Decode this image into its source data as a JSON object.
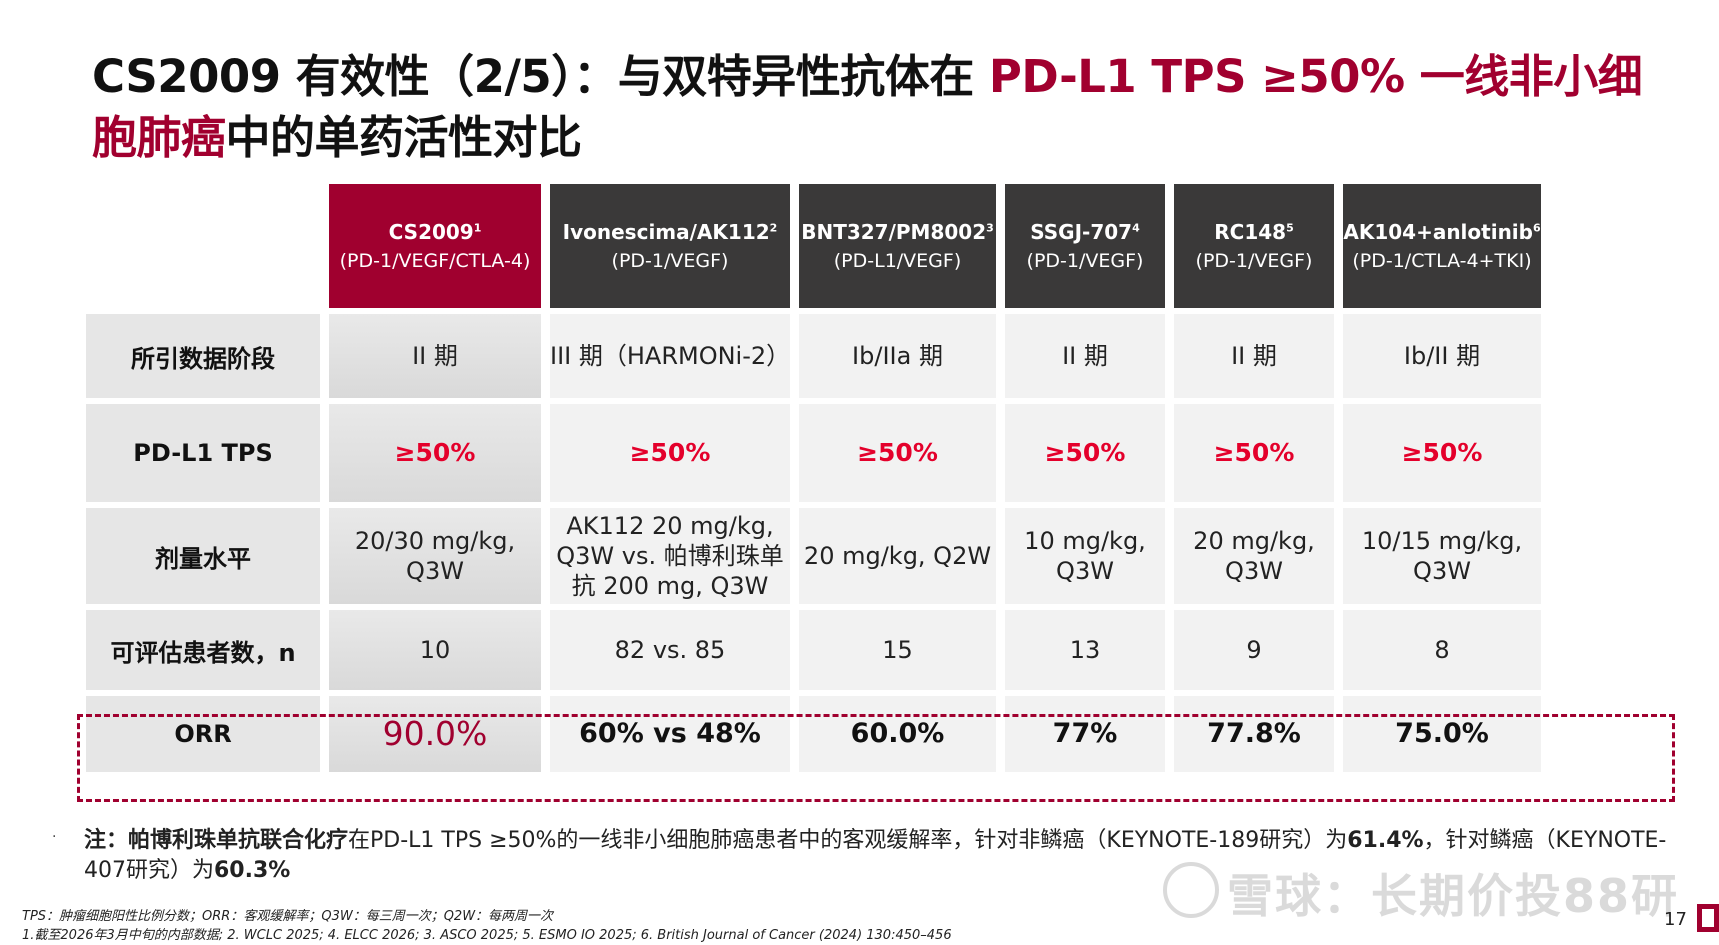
{
  "title": {
    "part1": "CS2009 有效性（2/5）：与双特异性抗体在 ",
    "highlight1": "PD-L1 TPS ≥50% 一线非小细胞肺癌",
    "part2": "中的单药活性对比"
  },
  "table": {
    "columns": [
      {
        "name": "CS2009",
        "sup": "1",
        "target": "(PD-1/VEGF/CTLA-4)"
      },
      {
        "name": "Ivonescima/AK112",
        "sup": "2",
        "target": "(PD-1/VEGF)"
      },
      {
        "name": "BNT327/PM8002",
        "sup": "3",
        "target": "(PD-L1/VEGF)"
      },
      {
        "name": "SSGJ-707",
        "sup": "4",
        "target": "(PD-1/VEGF)"
      },
      {
        "name": "RC148",
        "sup": "5",
        "target": "(PD-1/VEGF)"
      },
      {
        "name": "AK104+anlotinib",
        "sup": "6",
        "target": "(PD-1/CTLA-4+TKI)"
      }
    ],
    "rows": [
      {
        "label": "所引数据阶段",
        "values": [
          "II 期",
          "III 期（HARMONi-2）",
          "Ib/IIa 期",
          "II 期",
          "II 期",
          "Ib/II 期"
        ]
      },
      {
        "label": "PD-L1 TPS",
        "values": [
          "≥50%",
          "≥50%",
          "≥50%",
          "≥50%",
          "≥50%",
          "≥50%"
        ]
      },
      {
        "label": "剂量水平",
        "values": [
          "20/30 mg/kg, Q3W",
          "AK112 20 mg/kg, Q3W vs. 帕博利珠单抗 200 mg, Q3W",
          "20 mg/kg, Q2W",
          "10 mg/kg, Q3W",
          "20 mg/kg, Q3W",
          "10/15 mg/kg, Q3W"
        ]
      },
      {
        "label": "可评估患者数，n",
        "values": [
          "10",
          "82 vs. 85",
          "15",
          "13",
          "9",
          "8"
        ]
      },
      {
        "label": "ORR",
        "values": [
          "90.0%",
          "60% vs 48%",
          "60.0%",
          "77%",
          "77.8%",
          "75.0%"
        ]
      }
    ]
  },
  "note": {
    "prefix": "注：帕博利珠单抗联合化疗",
    "text1": "在PD-L1 TPS ≥50%的一线非小细胞肺癌患者中的客观缓解率，针对非鳞癌（KEYNOTE-189研究）为",
    "val1": "61.4%",
    "text2": "，针对鳞癌（KEYNOTE-407研究）为",
    "val2": "60.3%"
  },
  "footnotes": {
    "line1": "TPS：肿瘤细胞阳性比例分数；ORR：客观缓解率；Q3W：每三周一次；Q2W：每两周一次",
    "line2": "1.截至2026年3月中旬的内部数据; 2. WCLC 2025; 4. ELCC 2026; 3. ASCO 2025; 5. ESMO IO 2025; 6. British Journal of Cancer (2024) 130:450–456"
  },
  "watermark": "雪球：长期价投88研",
  "page_number": "17",
  "colors": {
    "brand": "#a0002f",
    "header": "#3a3939",
    "tps": "#e4002b"
  }
}
